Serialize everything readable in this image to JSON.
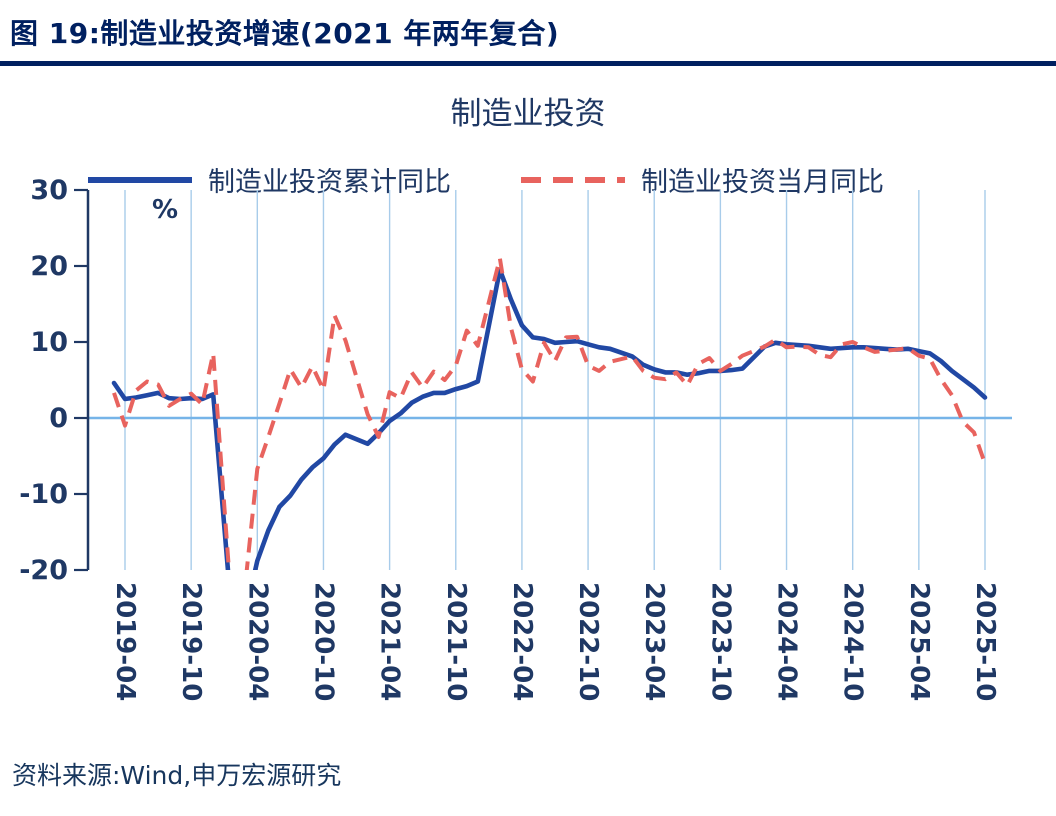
{
  "header": {
    "title": "图 19:制造业投资增速(2021 年两年复合)"
  },
  "footer": {
    "source": "资料来源:Wind,申万宏源研究"
  },
  "colors": {
    "navy": "#1F3864",
    "header_navy": "#002060",
    "grid": "#A8CCEA",
    "zero": "#76B4E8",
    "line_blue": "#2148A4",
    "line_red": "#E8635E"
  },
  "chart_data": {
    "type": "line",
    "title": "制造业投资",
    "unit_label": "%",
    "ylim": [
      -20,
      30
    ],
    "yticks": [
      30,
      20,
      10,
      0,
      -10,
      -20
    ],
    "grid": "vertical",
    "legend_position": "top",
    "xticks": [
      "2019-04",
      "2019-10",
      "2020-04",
      "2020-10",
      "2021-04",
      "2021-10",
      "2022-04",
      "2022-10",
      "2023-04",
      "2023-10",
      "2024-04",
      "2024-10",
      "2025-04",
      "2025-10"
    ],
    "x": [
      "2019-03",
      "2019-04",
      "2019-05",
      "2019-06",
      "2019-07",
      "2019-08",
      "2019-09",
      "2019-10",
      "2019-11",
      "2019-12",
      "2020-01",
      "2020-02",
      "2020-03",
      "2020-04",
      "2020-05",
      "2020-06",
      "2020-07",
      "2020-08",
      "2020-09",
      "2020-10",
      "2020-11",
      "2020-12",
      "2021-01",
      "2021-02",
      "2021-03",
      "2021-04",
      "2021-05",
      "2021-06",
      "2021-07",
      "2021-08",
      "2021-09",
      "2021-10",
      "2021-11",
      "2021-12",
      "2022-01",
      "2022-02",
      "2022-03",
      "2022-04",
      "2022-05",
      "2022-06",
      "2022-07",
      "2022-08",
      "2022-09",
      "2022-10",
      "2022-11",
      "2022-12",
      "2023-01",
      "2023-02",
      "2023-03",
      "2023-04",
      "2023-05",
      "2023-06",
      "2023-07",
      "2023-08",
      "2023-09",
      "2023-10",
      "2023-11",
      "2023-12",
      "2024-01",
      "2024-02",
      "2024-03",
      "2024-04",
      "2024-05",
      "2024-06",
      "2024-07",
      "2024-08",
      "2024-09",
      "2024-10",
      "2024-11",
      "2024-12",
      "2025-01",
      "2025-02",
      "2025-03",
      "2025-04",
      "2025-05",
      "2025-06",
      "2025-07",
      "2025-08",
      "2025-09",
      "2025-10"
    ],
    "series": [
      {
        "name": "制造业投资累计同比",
        "style": "solid",
        "color": "#2148A4",
        "values": [
          4.6,
          2.5,
          2.7,
          3.0,
          3.3,
          2.6,
          2.5,
          2.6,
          2.5,
          3.1,
          null,
          -31.5,
          -25.2,
          -18.8,
          -14.8,
          -11.7,
          -10.2,
          -8.1,
          -6.5,
          -5.3,
          -3.5,
          -2.2,
          null,
          -3.4,
          -2.0,
          -0.4,
          0.6,
          2.0,
          2.8,
          3.3,
          3.3,
          3.8,
          4.2,
          4.8,
          null,
          19.5,
          15.6,
          12.2,
          10.6,
          10.4,
          9.9,
          10.0,
          10.1,
          9.7,
          9.3,
          9.1,
          null,
          8.1,
          7.0,
          6.4,
          6.0,
          6.0,
          5.7,
          5.9,
          6.2,
          6.2,
          6.3,
          6.5,
          null,
          9.4,
          9.9,
          9.7,
          9.6,
          9.5,
          9.3,
          9.1,
          9.2,
          9.3,
          9.3,
          9.2,
          null,
          9.0,
          9.1,
          8.8,
          8.5,
          7.5,
          6.2,
          5.1,
          4.0,
          2.7
        ]
      },
      {
        "name": "制造业投资当月同比",
        "style": "dashed",
        "color": "#E8635E",
        "values": [
          3.3,
          -1.0,
          3.6,
          4.8,
          4.4,
          1.6,
          2.5,
          3.2,
          1.8,
          8.5,
          null,
          -31.5,
          -20.6,
          -6.7,
          -2.5,
          1.9,
          6.4,
          4.0,
          6.8,
          3.7,
          13.5,
          10.2,
          null,
          0.5,
          -2.5,
          3.4,
          2.6,
          6.0,
          4.0,
          6.1,
          5.0,
          6.9,
          11.5,
          9.5,
          null,
          21.0,
          11.9,
          6.4,
          4.8,
          9.9,
          7.5,
          10.6,
          10.7,
          6.9,
          6.2,
          7.4,
          null,
          8.1,
          6.2,
          5.3,
          5.1,
          6.0,
          4.3,
          7.1,
          7.9,
          6.2,
          7.1,
          8.2,
          null,
          9.4,
          10.3,
          9.3,
          9.4,
          9.3,
          8.3,
          8.0,
          9.7,
          10.0,
          9.3,
          8.7,
          null,
          9.0,
          9.2,
          8.2,
          7.8,
          5.1,
          3.0,
          -0.5,
          -1.9,
          -6.0
        ]
      }
    ]
  }
}
